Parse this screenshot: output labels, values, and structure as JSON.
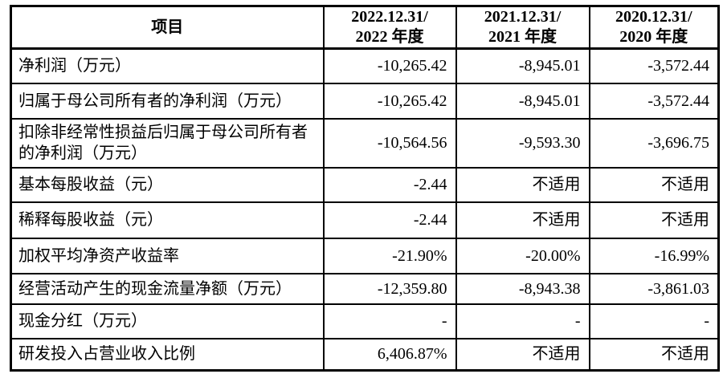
{
  "table": {
    "header": {
      "item": "项目",
      "cols": [
        {
          "line1": "2022.12.31/",
          "line2": "2022 年度"
        },
        {
          "line1": "2021.12.31/",
          "line2": "2021 年度"
        },
        {
          "line1": "2020.12.31/",
          "line2": "2020 年度"
        }
      ]
    },
    "rows": [
      {
        "label": "净利润（万元）",
        "v2022": "-10,265.42",
        "v2021": "-8,945.01",
        "v2020": "-3,572.44"
      },
      {
        "label": "归属于母公司所有者的净利润（万元）",
        "v2022": "-10,265.42",
        "v2021": "-8,945.01",
        "v2020": "-3,572.44"
      },
      {
        "label": "扣除非经常性损益后归属于母公司所有者的净利润（万元）",
        "v2022": "-10,564.56",
        "v2021": "-9,593.30",
        "v2020": "-3,696.75"
      },
      {
        "label": "基本每股收益（元）",
        "v2022": "-2.44",
        "v2021": "不适用",
        "v2020": "不适用"
      },
      {
        "label": "稀释每股收益（元）",
        "v2022": "-2.44",
        "v2021": "不适用",
        "v2020": "不适用"
      },
      {
        "label": "加权平均净资产收益率",
        "v2022": "-21.90%",
        "v2021": "-20.00%",
        "v2020": "-16.99%"
      },
      {
        "label": "经营活动产生的现金流量净额（万元）",
        "v2022": "-12,359.80",
        "v2021": "-8,943.38",
        "v2020": "-3,861.03"
      },
      {
        "label": "现金分红（万元）",
        "v2022": "-",
        "v2021": "-",
        "v2020": "-"
      },
      {
        "label": "研发投入占营业收入比例",
        "v2022": "6,406.87%",
        "v2021": "不适用",
        "v2020": "不适用"
      }
    ],
    "colors": {
      "border": "#000000",
      "text": "#000000",
      "background": "#ffffff"
    }
  }
}
